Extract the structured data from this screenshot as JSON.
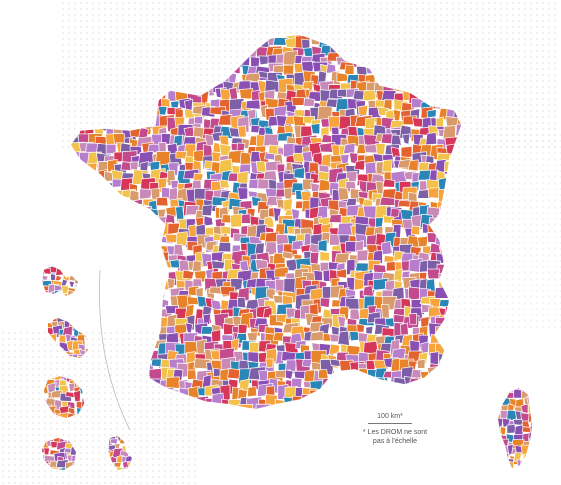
{
  "legend": {
    "scale": "100 km*",
    "note_line1": "* Les DROM ne sont",
    "note_line2": "pas à l'échelle"
  },
  "palette": [
    "#f7a43c",
    "#e8832a",
    "#c24a8d",
    "#8a4fb3",
    "#b67ecc",
    "#2b86b8",
    "#d6365a",
    "#f2c24a",
    "#d99b6c",
    "#c98ab8",
    "#e3622e",
    "#7d5fa8"
  ],
  "features": {
    "water_color": "#ffffff",
    "border_color": "#ffffff",
    "dot_color": "#e4e4e4"
  }
}
